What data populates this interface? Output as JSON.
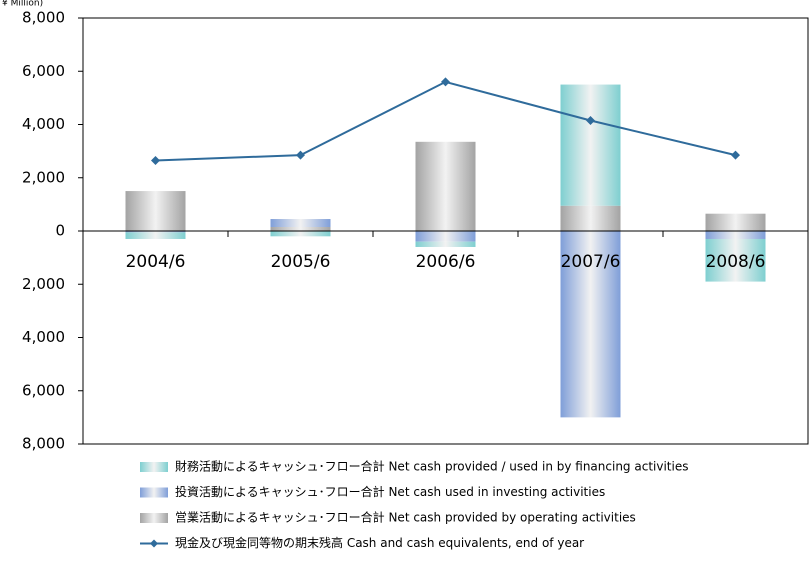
{
  "chart_data": {
    "type": "stacked_bar_line",
    "y_axis_label": "¥ Million)",
    "categories": [
      "2004/6",
      "2005/6",
      "2006/6",
      "2007/6",
      "2008/6"
    ],
    "series": [
      {
        "name": "営業活動によるキャッシュ･フロー合計 Net cash provided by operating activities",
        "color": "#a3a3a3",
        "values": [
          1500,
          150,
          3350,
          950,
          650
        ]
      },
      {
        "name": "投資活動によるキャッシュ･フロー合計 Net cash used in investing activities",
        "color": "#7f9ed8",
        "values": [
          -50,
          300,
          -400,
          -7000,
          -300
        ]
      },
      {
        "name": "財務活動によるキャッシュ･フロー合計 Net cash provided / used in by financing activities",
        "color": "#7ecfd0",
        "values": [
          -250,
          -200,
          -200,
          4550,
          -1600
        ]
      },
      {
        "name": "現金及び現金同等物の期末残高 Cash and cash equivalents, end of year",
        "color": "#2f6b9b",
        "type": "line",
        "values": [
          2650,
          2850,
          5600,
          4150,
          2850
        ]
      }
    ],
    "ylim": [
      -8000,
      8000
    ],
    "yticks": [
      {
        "value": -8000,
        "label": "8,000"
      },
      {
        "value": -6000,
        "label": "6,000"
      },
      {
        "value": -4000,
        "label": "4,000"
      },
      {
        "value": -2000,
        "label": "2,000"
      },
      0,
      {
        "value": 2000,
        "label": "2,000"
      },
      {
        "value": 4000,
        "label": "4,000"
      },
      {
        "value": 6000,
        "label": "6,000"
      },
      {
        "value": 8000,
        "label": "8,000"
      }
    ]
  }
}
